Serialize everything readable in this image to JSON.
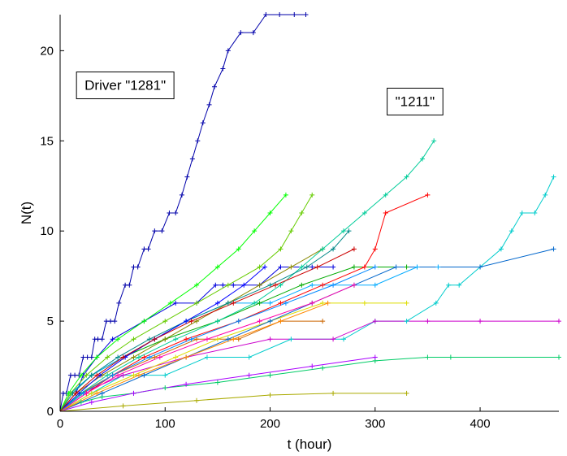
{
  "chart_data": {
    "type": "line",
    "title": "",
    "xlabel": "t (hour)",
    "ylabel": "N(t)",
    "xlim": [
      0,
      475
    ],
    "ylim": [
      0,
      22
    ],
    "xticks": [
      0,
      100,
      200,
      300,
      400
    ],
    "yticks": [
      0,
      5,
      10,
      15,
      20
    ],
    "grid": false,
    "legend": "none",
    "annotations": [
      {
        "text": "Driver \"1281\"",
        "x": 62,
        "y": 18.1
      },
      {
        "text": "\"1211\"",
        "x": 338,
        "y": 17.2
      }
    ],
    "series": [
      {
        "color": "#0000aa",
        "x": [
          0,
          3,
          6,
          10,
          14,
          18,
          22,
          26,
          30,
          33,
          36,
          40,
          44,
          48,
          52,
          56,
          62,
          66,
          70,
          74,
          80,
          84,
          90,
          97,
          104,
          110,
          116,
          121,
          126,
          131,
          136,
          142,
          147,
          155,
          160,
          172,
          184,
          196,
          209,
          223,
          234
        ],
        "y": [
          0,
          1,
          1,
          2,
          2,
          2,
          3,
          3,
          3,
          4,
          4,
          4,
          5,
          5,
          5,
          6,
          7,
          7,
          8,
          8,
          9,
          9,
          10,
          10,
          11,
          11,
          12,
          13,
          14,
          15,
          16,
          17,
          18,
          19,
          20,
          21,
          21,
          22,
          22,
          22,
          22
        ]
      },
      {
        "color": "#0000dd",
        "x": [
          0,
          15,
          22,
          35,
          50,
          80,
          110,
          130,
          148,
          155,
          165,
          190,
          210,
          240,
          260
        ],
        "y": [
          0,
          1,
          2,
          3,
          4,
          5,
          6,
          6,
          7,
          7,
          7,
          7,
          8,
          8,
          8
        ]
      },
      {
        "color": "#00cc66",
        "x": [
          0,
          20,
          40,
          70,
          100,
          150,
          200,
          250,
          300,
          350,
          372,
          475
        ],
        "y": [
          0,
          0.5,
          0.8,
          1.0,
          1.3,
          1.6,
          2.0,
          2.4,
          2.8,
          3.0,
          3.0,
          3.0
        ]
      },
      {
        "color": "#00cccc",
        "x": [
          0,
          30,
          60,
          100,
          140,
          180,
          220,
          270,
          300,
          330,
          358,
          370,
          380,
          400,
          420,
          430,
          440,
          452,
          462,
          470
        ],
        "y": [
          0,
          1,
          2,
          2,
          3,
          3,
          4,
          4,
          5,
          5,
          6,
          7,
          7,
          8,
          9,
          10,
          11,
          11,
          12,
          13
        ]
      },
      {
        "color": "#cc00cc",
        "x": [
          0,
          20,
          60,
          120,
          200,
          260,
          300,
          350,
          400,
          475
        ],
        "y": [
          0,
          1,
          2,
          3,
          4,
          4,
          5,
          5,
          5,
          5
        ]
      },
      {
        "color": "#dddd00",
        "x": [
          0,
          30,
          70,
          110,
          150,
          200,
          250,
          290,
          330
        ],
        "y": [
          0,
          1,
          2,
          3,
          4,
          5,
          6,
          6,
          6
        ]
      },
      {
        "color": "#00aa00",
        "x": [
          0,
          10,
          30,
          60,
          100,
          150,
          190,
          230,
          280,
          330
        ],
        "y": [
          0,
          1,
          2,
          3,
          4,
          5,
          6,
          7,
          8,
          8
        ]
      },
      {
        "color": "#ff0000",
        "x": [
          0,
          25,
          50,
          80,
          120,
          170,
          210,
          250,
          290,
          300,
          310,
          350
        ],
        "y": [
          0,
          1,
          2,
          3,
          4,
          5,
          6,
          7,
          8,
          9,
          11,
          12
        ]
      },
      {
        "color": "#00aaff",
        "x": [
          0,
          10,
          30,
          60,
          90,
          120,
          160,
          200,
          240,
          300,
          340,
          360
        ],
        "y": [
          0,
          1,
          2,
          3,
          4,
          5,
          6,
          6,
          7,
          7,
          8,
          8
        ]
      },
      {
        "color": "#888800",
        "x": [
          0,
          15,
          40,
          70,
          100,
          130,
          160,
          190,
          220,
          250
        ],
        "y": [
          0,
          1,
          2,
          3,
          4,
          5,
          6,
          7,
          8,
          9
        ]
      },
      {
        "color": "#0066cc",
        "x": [
          0,
          40,
          80,
          120,
          160,
          200,
          240,
          280,
          320,
          400,
          470
        ],
        "y": [
          0,
          1,
          2,
          3,
          4,
          5,
          6,
          7,
          8,
          8,
          9
        ]
      },
      {
        "color": "#cc6600",
        "x": [
          0,
          20,
          50,
          90,
          130,
          170,
          210,
          250
        ],
        "y": [
          0,
          1,
          2,
          3,
          4,
          4,
          5,
          5
        ]
      },
      {
        "color": "#66cc00",
        "x": [
          0,
          10,
          25,
          45,
          70,
          100,
          130,
          160,
          190,
          210,
          220,
          230,
          240
        ],
        "y": [
          0,
          1,
          2,
          3,
          4,
          5,
          6,
          7,
          8,
          9,
          10,
          11,
          12
        ]
      },
      {
        "color": "#00cc99",
        "x": [
          0,
          20,
          45,
          75,
          110,
          150,
          185,
          210,
          230,
          250,
          270,
          290,
          310,
          330,
          345,
          356
        ],
        "y": [
          0,
          1,
          2,
          3,
          4,
          5,
          6,
          7,
          8,
          9,
          10,
          11,
          12,
          13,
          14,
          15
        ]
      },
      {
        "color": "#aa00ff",
        "x": [
          0,
          30,
          70,
          120,
          180,
          240,
          300
        ],
        "y": [
          0,
          0.5,
          1,
          1.5,
          2,
          2.5,
          3
        ]
      },
      {
        "color": "#ff00aa",
        "x": [
          0,
          25,
          55,
          95,
          140,
          190,
          240,
          280
        ],
        "y": [
          0,
          1,
          2,
          3,
          4,
          5,
          6,
          7
        ]
      },
      {
        "color": "#008888",
        "x": [
          0,
          12,
          30,
          55,
          85,
          120,
          160,
          200,
          235,
          260,
          275
        ],
        "y": [
          0,
          1,
          2,
          3,
          4,
          5,
          6,
          7,
          8,
          9,
          10
        ]
      },
      {
        "color": "#aaaa00",
        "x": [
          0,
          60,
          130,
          200,
          260,
          330
        ],
        "y": [
          0,
          0.3,
          0.6,
          0.9,
          1.0,
          1.0
        ]
      },
      {
        "color": "#0000ff",
        "x": [
          0,
          18,
          38,
          62,
          90,
          120,
          150,
          175,
          195
        ],
        "y": [
          0,
          1,
          2,
          3,
          4,
          5,
          6,
          7,
          8
        ]
      },
      {
        "color": "#00ff00",
        "x": [
          0,
          8,
          20,
          35,
          55,
          80,
          105,
          130,
          150,
          170,
          185,
          200,
          215
        ],
        "y": [
          0,
          1,
          2,
          3,
          4,
          5,
          6,
          7,
          8,
          9,
          10,
          11,
          12
        ]
      },
      {
        "color": "#ff8800",
        "x": [
          0,
          35,
          75,
          120,
          165,
          210,
          255
        ],
        "y": [
          0,
          1,
          2,
          3,
          4,
          5,
          6
        ]
      },
      {
        "color": "#0088ff",
        "x": [
          0,
          22,
          50,
          85,
          125,
          170,
          215,
          260,
          300
        ],
        "y": [
          0,
          1,
          2,
          3,
          4,
          5,
          6,
          7,
          8
        ]
      },
      {
        "color": "#cc0000",
        "x": [
          0,
          15,
          35,
          60,
          90,
          125,
          165,
          205,
          245,
          280
        ],
        "y": [
          0,
          1,
          2,
          3,
          4,
          5,
          6,
          7,
          8,
          9
        ]
      }
    ]
  }
}
